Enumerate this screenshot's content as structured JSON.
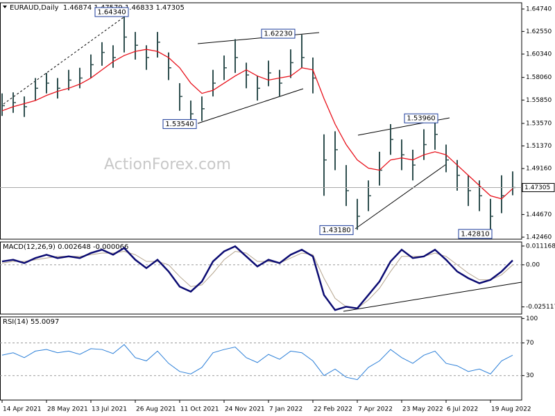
{
  "chart_data": [
    {
      "type": "ohlc",
      "title": "EURAUD,Daily  1.46874 1.47579 1.46833 1.47305",
      "watermark": "ActionForex.com",
      "x": [
        0,
        8,
        16,
        24,
        32,
        40,
        48,
        56,
        64,
        72,
        80,
        88,
        96,
        104,
        112,
        120,
        128,
        136,
        144,
        152,
        160,
        168,
        176,
        184,
        192,
        200,
        208,
        216,
        224,
        232,
        240,
        248,
        256,
        264,
        272,
        280,
        288,
        296,
        304,
        312,
        320,
        328,
        336,
        344,
        352,
        360,
        368
      ],
      "high": [
        1.565,
        1.566,
        1.562,
        1.58,
        1.585,
        1.58,
        1.588,
        1.59,
        1.603,
        1.615,
        1.612,
        1.6434,
        1.625,
        1.612,
        1.625,
        1.605,
        1.575,
        1.558,
        1.562,
        1.588,
        1.602,
        1.618,
        1.595,
        1.582,
        1.597,
        1.588,
        1.608,
        1.6223,
        1.6,
        1.525,
        1.528,
        1.495,
        1.462,
        1.48,
        1.508,
        1.535,
        1.52,
        1.51,
        1.53,
        1.5396,
        1.515,
        1.5,
        1.485,
        1.48,
        1.462,
        1.485,
        1.4888
      ],
      "low": [
        1.543,
        1.546,
        1.542,
        1.558,
        1.565,
        1.56,
        1.568,
        1.57,
        1.58,
        1.592,
        1.59,
        1.605,
        1.598,
        1.588,
        1.6,
        1.578,
        1.548,
        1.5354,
        1.538,
        1.562,
        1.578,
        1.585,
        1.57,
        1.558,
        1.572,
        1.562,
        1.58,
        1.59,
        1.565,
        1.465,
        1.49,
        1.455,
        1.4318,
        1.45,
        1.475,
        1.505,
        1.49,
        1.48,
        1.5,
        1.51,
        1.488,
        1.47,
        1.455,
        1.45,
        1.4281,
        1.448,
        1.4655
      ],
      "close": [
        1.553,
        1.556,
        1.552,
        1.57,
        1.575,
        1.57,
        1.578,
        1.58,
        1.593,
        1.605,
        1.6,
        1.62,
        1.612,
        1.6,
        1.615,
        1.59,
        1.562,
        1.545,
        1.55,
        1.575,
        1.59,
        1.6,
        1.583,
        1.57,
        1.585,
        1.575,
        1.595,
        1.6,
        1.58,
        1.5,
        1.51,
        1.47,
        1.445,
        1.465,
        1.49,
        1.52,
        1.505,
        1.495,
        1.515,
        1.525,
        1.5,
        1.485,
        1.47,
        1.465,
        1.445,
        1.465,
        1.47305
      ],
      "ma": [
        1.548,
        1.552,
        1.555,
        1.558,
        1.563,
        1.567,
        1.57,
        1.574,
        1.58,
        1.588,
        1.596,
        1.602,
        1.606,
        1.608,
        1.606,
        1.6,
        1.59,
        1.575,
        1.565,
        1.568,
        1.575,
        1.582,
        1.588,
        1.582,
        1.578,
        1.58,
        1.582,
        1.59,
        1.588,
        1.56,
        1.535,
        1.515,
        1.5,
        1.492,
        1.49,
        1.5,
        1.502,
        1.5,
        1.505,
        1.508,
        1.505,
        1.495,
        1.485,
        1.475,
        1.465,
        1.462,
        1.472
      ],
      "bar_color": "#2f4f4f",
      "ma_color": "#e8101a",
      "annotations": [
        {
          "x": 92,
          "value": 1.6434,
          "label": "1.64340"
        },
        {
          "x": 212,
          "value": 1.6223,
          "label": "1.62230"
        },
        {
          "x": 141,
          "value": 1.5354,
          "label": "1.53540"
        },
        {
          "x": 315,
          "value": 1.5396,
          "label": "1.53960"
        },
        {
          "x": 254,
          "value": 1.4318,
          "label": "1.43180"
        },
        {
          "x": 354,
          "value": 1.4281,
          "label": "1.42810"
        }
      ],
      "xlim": [
        -1.5,
        374.5
      ],
      "ylim": [
        1.4226,
        1.6535
      ],
      "yticks": [
        {
          "value": 1.6474,
          "label": "1.64740"
        },
        {
          "value": 1.6255,
          "label": "1.62550"
        },
        {
          "value": 1.6034,
          "label": "1.60340"
        },
        {
          "value": 1.5806,
          "label": "1.58060"
        },
        {
          "value": 1.5585,
          "label": "1.55850"
        },
        {
          "value": 1.5357,
          "label": "1.53570"
        },
        {
          "value": 1.5137,
          "label": "1.51370"
        },
        {
          "value": 1.4916,
          "label": "1.49160"
        },
        {
          "value": 1.4467,
          "label": "1.44670"
        },
        {
          "value": 1.4246,
          "label": "1.42460"
        }
      ]
    },
    {
      "type": "line",
      "title": "MACD(12,26,9) 0.002648 -0.000066",
      "x": [
        0,
        8,
        16,
        24,
        32,
        40,
        48,
        56,
        64,
        72,
        80,
        88,
        96,
        104,
        112,
        120,
        128,
        136,
        144,
        152,
        160,
        168,
        176,
        184,
        192,
        200,
        208,
        216,
        224,
        232,
        240,
        248,
        256,
        264,
        272,
        280,
        288,
        296,
        304,
        312,
        320,
        328,
        336,
        344,
        352,
        360,
        368
      ],
      "series": [
        {
          "color": "#b5a58e",
          "values": [
            0.001,
            0.002,
            0.002,
            0.003,
            0.004,
            0.005,
            0.005,
            0.005,
            0.006,
            0.007,
            0.007,
            0.008,
            0.006,
            0.002,
            0.002,
            0.0,
            -0.007,
            -0.013,
            -0.012,
            -0.005,
            0.003,
            0.008,
            0.007,
            0.002,
            0.002,
            0.001,
            0.004,
            0.007,
            0.006,
            -0.008,
            -0.02,
            -0.025,
            -0.026,
            -0.021,
            -0.014,
            -0.004,
            0.005,
            0.005,
            0.005,
            0.007,
            0.005,
            0.0,
            -0.005,
            -0.009,
            -0.009,
            -0.006,
            -6.6e-05
          ]
        },
        {
          "color": "#0b0b72",
          "values": [
            0.002,
            0.003,
            0.001,
            0.004,
            0.006,
            0.004,
            0.005,
            0.004,
            0.007,
            0.009,
            0.006,
            0.01,
            0.003,
            -0.002,
            0.003,
            -0.004,
            -0.013,
            -0.016,
            -0.01,
            0.002,
            0.008,
            0.011,
            0.005,
            -0.001,
            0.003,
            0.001,
            0.006,
            0.009,
            0.005,
            -0.018,
            -0.027,
            -0.025,
            -0.026,
            -0.018,
            -0.01,
            0.002,
            0.009,
            0.004,
            0.005,
            0.009,
            0.003,
            -0.004,
            -0.008,
            -0.011,
            -0.009,
            -0.004,
            0.002648
          ]
        }
      ],
      "xlim": [
        -1.5,
        374.5
      ],
      "ylim": [
        -0.0294,
        0.0136
      ],
      "yticks": [
        0.011168,
        {
          "value": 0,
          "label": "0.00"
        },
        -0.025117
      ],
      "levels": [
        0
      ]
    },
    {
      "type": "line",
      "title": "RSI(14) 55.0097",
      "x": [
        0,
        8,
        16,
        24,
        32,
        40,
        48,
        56,
        64,
        72,
        80,
        88,
        96,
        104,
        112,
        120,
        128,
        136,
        144,
        152,
        160,
        168,
        176,
        184,
        192,
        200,
        208,
        216,
        224,
        232,
        240,
        248,
        256,
        264,
        272,
        280,
        288,
        296,
        304,
        312,
        320,
        328,
        336,
        344,
        352,
        360,
        368
      ],
      "series": [
        {
          "color": "#2b7fd8",
          "values": [
            55,
            58,
            52,
            60,
            62,
            58,
            60,
            56,
            63,
            62,
            57,
            68,
            52,
            48,
            60,
            45,
            35,
            32,
            40,
            58,
            62,
            65,
            52,
            46,
            56,
            50,
            60,
            58,
            48,
            30,
            38,
            28,
            25,
            40,
            48,
            62,
            52,
            45,
            55,
            60,
            45,
            42,
            35,
            38,
            32,
            48,
            55.0097
          ]
        }
      ],
      "xlim": [
        -1.5,
        374.5
      ],
      "ylim": [
        0,
        102
      ],
      "yticks": [
        100,
        70,
        30
      ],
      "levels": [
        70,
        30
      ],
      "xticks": [
        {
          "value": 0,
          "label": "14 Apr 2021"
        },
        {
          "value": 32,
          "label": "28 May 2021"
        },
        {
          "value": 64,
          "label": "13 Jul 2021"
        },
        {
          "value": 96,
          "label": "26 Aug 2021"
        },
        {
          "value": 128,
          "label": "11 Oct 2021"
        },
        {
          "value": 160,
          "label": "24 Nov 2021"
        },
        {
          "value": 192,
          "label": "7 Jan 2022"
        },
        {
          "value": 224,
          "label": "22 Feb 2022"
        },
        {
          "value": 256,
          "label": "7 Apr 2022"
        },
        {
          "value": 288,
          "label": "23 May 2022"
        },
        {
          "value": 320,
          "label": "6 Jul 2022"
        },
        {
          "value": 352,
          "label": "19 Aug 2022"
        }
      ]
    }
  ]
}
